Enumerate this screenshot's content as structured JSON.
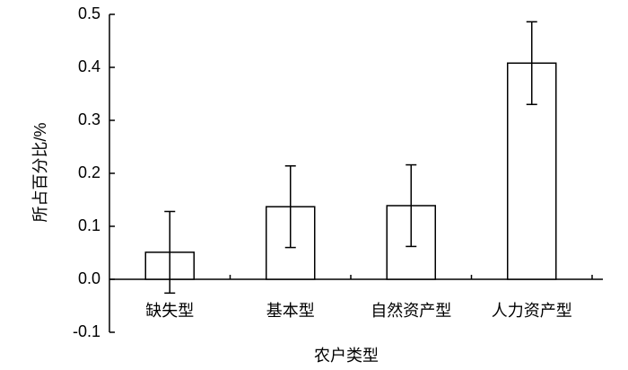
{
  "chart_data": {
    "type": "bar",
    "xlabel": "农户类型",
    "ylabel": "所占百分比/%",
    "categories": [
      "缺失型",
      "基本型",
      "自然资产型",
      "人力资产型"
    ],
    "values": [
      0.051,
      0.137,
      0.139,
      0.408
    ],
    "errors": [
      0.077,
      0.077,
      0.077,
      0.078
    ],
    "color": "#ffffff",
    "edgecolor": "#000000",
    "ylim": [
      -0.1,
      0.5
    ],
    "yticks": [
      -0.1,
      {
        "value": 0,
        "label": "0.0"
      },
      0.1,
      0.2,
      0.3,
      0.4,
      0.5
    ],
    "grid": false
  }
}
